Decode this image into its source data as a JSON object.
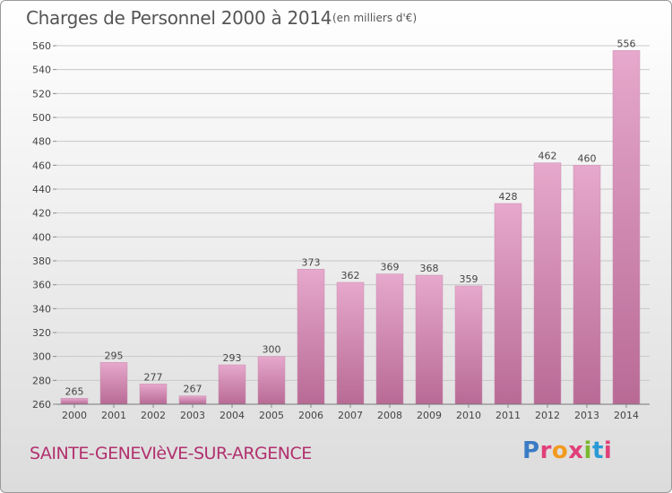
{
  "header": {
    "title": "Charges de Personnel 2000 à 2014",
    "subtitle": "(en milliers d'€)"
  },
  "footer": {
    "commune": "SAINTE-GENEVIèVE-SUR-ARGENCE",
    "logo_text": "Proxiti",
    "logo_colors": [
      "#3a7cc4",
      "#e0407a",
      "#f29a1e",
      "#e0407a",
      "#7ab82e",
      "#2a9ad6",
      "#e0407a"
    ]
  },
  "colors": {
    "bar_light": "#e6a8cc",
    "bar_dark": "#b86a95",
    "grid": "#c8c8c8",
    "axis_text": "#444444"
  },
  "chart_data": {
    "type": "bar",
    "title": "Charges de Personnel 2000 à 2014",
    "subtitle": "(en milliers d'€)",
    "categories": [
      "2000",
      "2001",
      "2002",
      "2003",
      "2004",
      "2005",
      "2006",
      "2007",
      "2008",
      "2009",
      "2010",
      "2011",
      "2012",
      "2013",
      "2014"
    ],
    "values": [
      265,
      295,
      277,
      267,
      293,
      300,
      373,
      362,
      369,
      368,
      359,
      428,
      462,
      460,
      556
    ],
    "ylim": [
      260,
      560
    ],
    "yticks": [
      260,
      280,
      300,
      320,
      340,
      360,
      380,
      400,
      420,
      440,
      460,
      480,
      500,
      520,
      540,
      560
    ],
    "grid": true,
    "data_labels": true
  }
}
